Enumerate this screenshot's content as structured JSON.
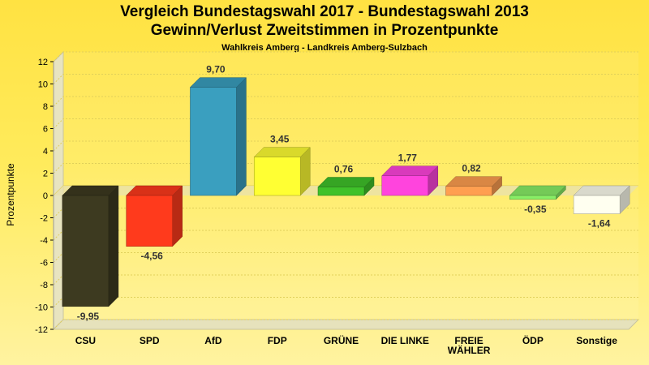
{
  "chart_data": {
    "type": "bar",
    "title": "Vergleich Bundestagswahl 2017 - Bundestagswahl 2013",
    "title_line2": "Gewinn/Verlust Zweitstimmen in Prozentpunkte",
    "subtitle": "Wahlkreis Amberg - Landkreis Amberg-Sulzbach",
    "ylabel": "Prozentpunkte",
    "xlabel": "",
    "ylim": [
      -12,
      12
    ],
    "yticks": [
      12,
      10,
      8,
      6,
      4,
      2,
      0,
      -2,
      -4,
      -6,
      -8,
      -10,
      -12
    ],
    "grid": true,
    "legend": "none",
    "categories": [
      "CSU",
      "SPD",
      "AfD",
      "FDP",
      "GRÜNE",
      "DIE LINKE",
      "FREIE WÄHLER",
      "ÖDP",
      "Sonstige"
    ],
    "category_lines": [
      [
        "CSU"
      ],
      [
        "SPD"
      ],
      [
        "AfD"
      ],
      [
        "FDP"
      ],
      [
        "GRÜNE"
      ],
      [
        "DIE LINKE"
      ],
      [
        "FREIE",
        "WÄHLER"
      ],
      [
        "ÖDP"
      ],
      [
        "Sonstige"
      ]
    ],
    "values": [
      -9.95,
      -4.56,
      9.7,
      3.45,
      0.76,
      1.77,
      0.82,
      -0.35,
      -1.64
    ],
    "value_labels": [
      "-9,95",
      "-4,56",
      "9,70",
      "3,45",
      "0,76",
      "1,77",
      "0,82",
      "-0,35",
      "-1,64"
    ],
    "colors": [
      "#3d3a20",
      "#ff3a1c",
      "#3a9fbf",
      "#ffff33",
      "#3fc22a",
      "#ff44dd",
      "#ff9f50",
      "#88ee66",
      "#fffff0"
    ]
  }
}
